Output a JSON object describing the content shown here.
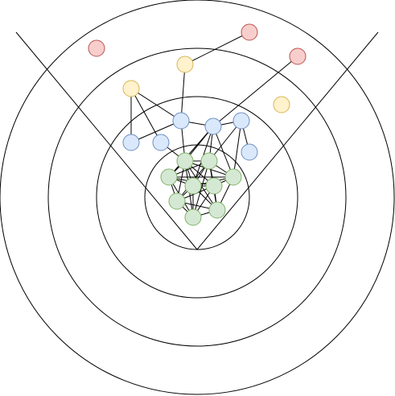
{
  "diagram": {
    "type": "concentric-network",
    "rings": 4,
    "wedge_lines": 2,
    "node_groups": {
      "outer-red": {
        "fill": "#f8cecc",
        "stroke": "#b85450",
        "count": 3
      },
      "yellow": {
        "fill": "#fff2cc",
        "stroke": "#d6b656",
        "count": 3
      },
      "blue": {
        "fill": "#dae8fc",
        "stroke": "#6c8ebf",
        "count": 7
      },
      "green": {
        "fill": "#d5e8d4",
        "stroke": "#82b366",
        "count": 10
      }
    },
    "line_color": "#000000",
    "background": "#ffffff"
  }
}
